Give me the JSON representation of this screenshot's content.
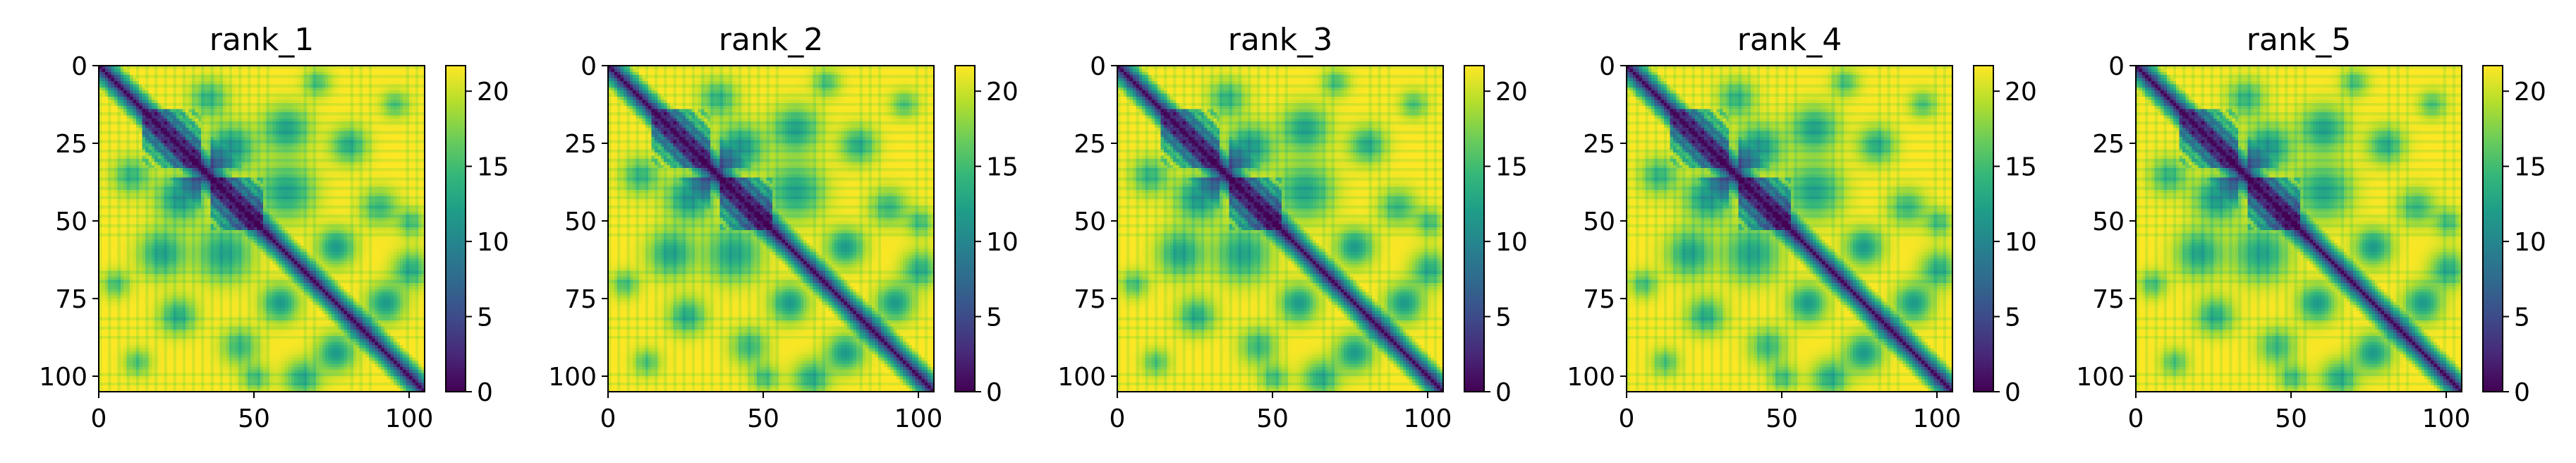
{
  "chart_data": {
    "type": "heatmap",
    "colormap": "viridis",
    "color_range": [
      0,
      21.7
    ],
    "matrix_size": 105,
    "panels": [
      {
        "title": "rank_1",
        "xlim": [
          0,
          105
        ],
        "ylim": [
          105,
          0
        ],
        "x_ticks": [
          0,
          50,
          100
        ],
        "y_ticks": [
          0,
          25,
          50,
          75,
          100
        ],
        "colorbar_ticks": [
          0,
          5,
          10,
          15,
          20
        ]
      },
      {
        "title": "rank_2",
        "xlim": [
          0,
          105
        ],
        "ylim": [
          105,
          0
        ],
        "x_ticks": [
          0,
          50,
          100
        ],
        "y_ticks": [
          0,
          25,
          50,
          75,
          100
        ],
        "colorbar_ticks": [
          0,
          5,
          10,
          15,
          20
        ]
      },
      {
        "title": "rank_3",
        "xlim": [
          0,
          105
        ],
        "ylim": [
          105,
          0
        ],
        "x_ticks": [
          0,
          50,
          100
        ],
        "y_ticks": [
          0,
          25,
          50,
          75,
          100
        ],
        "colorbar_ticks": [
          0,
          5,
          10,
          15,
          20
        ]
      },
      {
        "title": "rank_4",
        "xlim": [
          0,
          105
        ],
        "ylim": [
          105,
          0
        ],
        "x_ticks": [
          0,
          50,
          100
        ],
        "y_ticks": [
          0,
          25,
          50,
          75,
          100
        ],
        "colorbar_ticks": [
          0,
          5,
          10,
          15,
          20
        ]
      },
      {
        "title": "rank_5",
        "xlim": [
          0,
          105
        ],
        "ylim": [
          105,
          0
        ],
        "x_ticks": [
          0,
          50,
          100
        ],
        "y_ticks": [
          0,
          25,
          50,
          75,
          100
        ],
        "colorbar_ticks": [
          0,
          5,
          10,
          15,
          20
        ]
      }
    ],
    "structure_features": [
      {
        "kind": "helix",
        "start": 14,
        "end": 32
      },
      {
        "kind": "helix",
        "start": 36,
        "end": 52
      },
      {
        "kind": "sheet",
        "start": 55,
        "end": 64
      },
      {
        "kind": "sheet",
        "start": 72,
        "end": 80
      },
      {
        "kind": "sheet",
        "start": 88,
        "end": 96
      }
    ],
    "structure_contacts": [
      {
        "i": 26,
        "j": 42,
        "sigma": 5,
        "depth": 10
      },
      {
        "i": 20,
        "j": 60,
        "sigma": 5,
        "depth": 9
      },
      {
        "i": 40,
        "j": 60,
        "sigma": 6,
        "depth": 9
      },
      {
        "i": 58,
        "j": 76,
        "sigma": 4,
        "depth": 10
      },
      {
        "i": 76,
        "j": 92,
        "sigma": 4,
        "depth": 10
      },
      {
        "i": 25,
        "j": 80,
        "sigma": 4,
        "depth": 8
      },
      {
        "i": 10,
        "j": 35,
        "sigma": 4,
        "depth": 7
      },
      {
        "i": 45,
        "j": 90,
        "sigma": 4,
        "depth": 7
      },
      {
        "i": 65,
        "j": 100,
        "sigma": 4,
        "depth": 8
      },
      {
        "i": 12,
        "j": 95,
        "sigma": 3,
        "depth": 6
      },
      {
        "i": 5,
        "j": 70,
        "sigma": 3,
        "depth": 6
      },
      {
        "i": 50,
        "j": 100,
        "sigma": 3,
        "depth": 6
      }
    ]
  }
}
